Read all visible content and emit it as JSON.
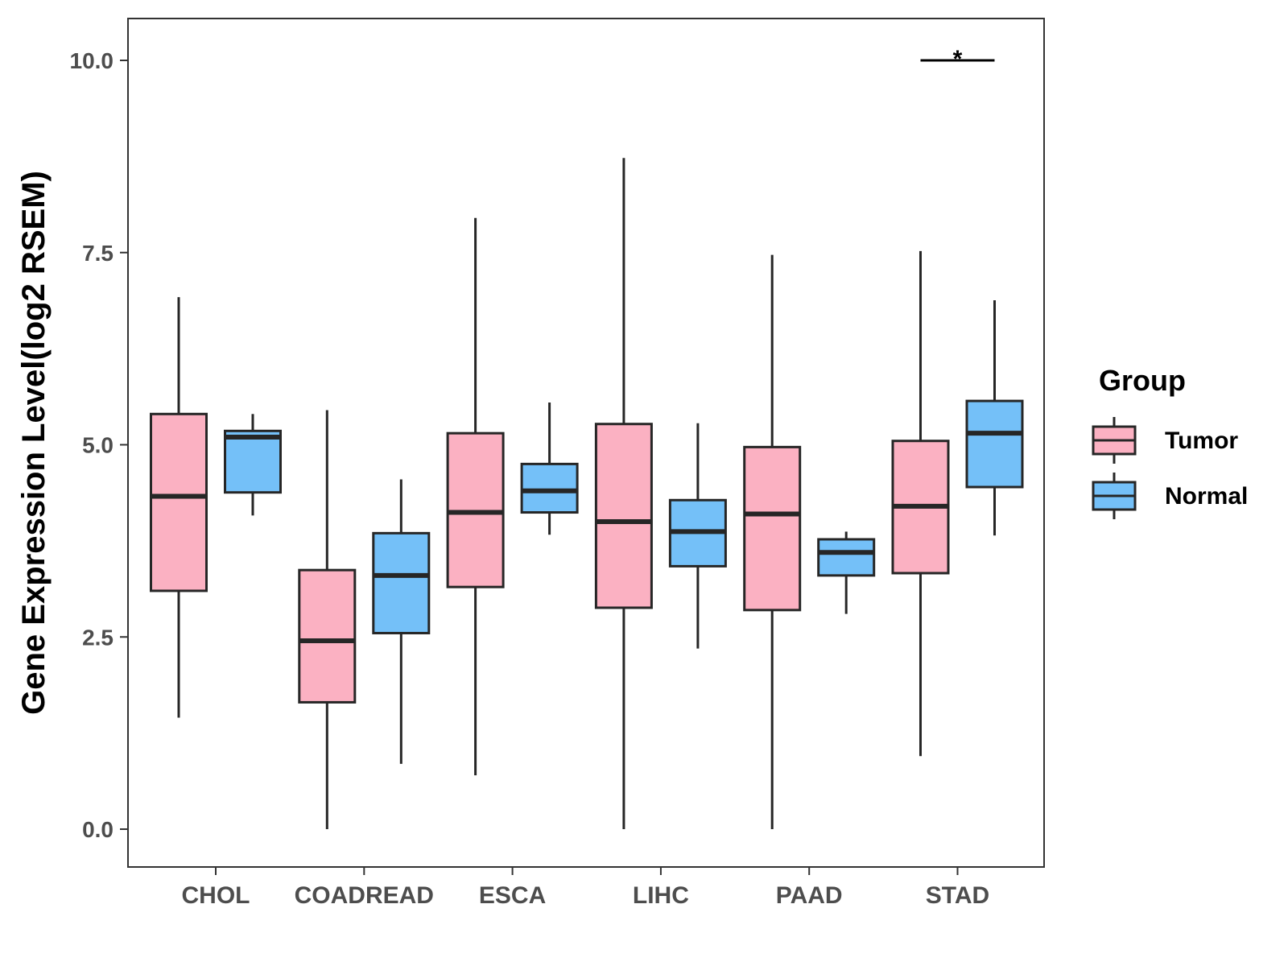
{
  "chart_data": {
    "type": "boxplot",
    "title": "",
    "xlabel": "",
    "ylabel": "Gene Expression Level(log2 RSEM)",
    "ylim": [
      -0.45,
      10.55
    ],
    "yticks": [
      0.0,
      2.5,
      5.0,
      7.5,
      10.0
    ],
    "ytick_labels": [
      "0.0",
      "2.5",
      "5.0",
      "7.5",
      "10.0"
    ],
    "categories": [
      "CHOL",
      "COADREAD",
      "ESCA",
      "LIHC",
      "PAAD",
      "STAD"
    ],
    "legend": {
      "title": "Group",
      "position": "right",
      "entries": [
        {
          "name": "Tumor",
          "color": "#FBB1C2"
        },
        {
          "name": "Normal",
          "color": "#74C0F8"
        }
      ]
    },
    "series": [
      {
        "name": "Tumor",
        "color": "#FBB1C2",
        "boxes": [
          {
            "category": "CHOL",
            "min": 1.45,
            "q1": 3.1,
            "median": 4.33,
            "q3": 5.4,
            "max": 6.92
          },
          {
            "category": "COADREAD",
            "min": 0.0,
            "q1": 1.65,
            "median": 2.45,
            "q3": 3.37,
            "max": 5.45
          },
          {
            "category": "ESCA",
            "min": 0.7,
            "q1": 3.15,
            "median": 4.12,
            "q3": 5.15,
            "max": 7.95
          },
          {
            "category": "LIHC",
            "min": 0.0,
            "q1": 2.88,
            "median": 4.0,
            "q3": 5.27,
            "max": 8.73
          },
          {
            "category": "PAAD",
            "min": 0.0,
            "q1": 2.85,
            "median": 4.1,
            "q3": 4.97,
            "max": 7.47
          },
          {
            "category": "STAD",
            "min": 0.95,
            "q1": 3.33,
            "median": 4.2,
            "q3": 5.05,
            "max": 7.52
          }
        ]
      },
      {
        "name": "Normal",
        "color": "#74C0F8",
        "boxes": [
          {
            "category": "CHOL",
            "min": 4.08,
            "q1": 4.38,
            "median": 5.1,
            "q3": 5.18,
            "max": 5.4
          },
          {
            "category": "COADREAD",
            "min": 0.85,
            "q1": 2.55,
            "median": 3.3,
            "q3": 3.85,
            "max": 4.55
          },
          {
            "category": "ESCA",
            "min": 3.83,
            "q1": 4.12,
            "median": 4.4,
            "q3": 4.75,
            "max": 5.55
          },
          {
            "category": "LIHC",
            "min": 2.35,
            "q1": 3.42,
            "median": 3.87,
            "q3": 4.28,
            "max": 5.28
          },
          {
            "category": "PAAD",
            "min": 2.8,
            "q1": 3.3,
            "median": 3.6,
            "q3": 3.77,
            "max": 3.87
          },
          {
            "category": "STAD",
            "min": 3.82,
            "q1": 4.45,
            "median": 5.15,
            "q3": 5.57,
            "max": 6.88
          }
        ]
      }
    ],
    "annotations": [
      {
        "category": "STAD",
        "text": "*",
        "y": 10.0
      }
    ]
  }
}
